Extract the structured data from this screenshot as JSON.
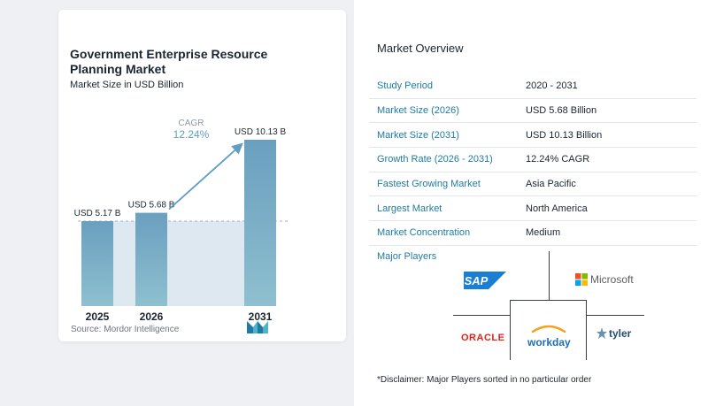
{
  "chart_data": {
    "type": "bar",
    "title": "Government Enterprise Resource Planning Market",
    "subtitle": "Market Size in USD Billion",
    "categories": [
      "2025",
      "2026",
      "2031"
    ],
    "values": [
      5.17,
      5.68,
      10.13
    ],
    "value_labels": [
      "USD 5.17 B",
      "USD 5.68 B",
      "USD 10.13 B"
    ],
    "cagr_label": "CAGR",
    "cagr_value": "12.24%",
    "baseline_guide": "dashed",
    "colors": {
      "bar_top": "#6a9fbf",
      "bar_bottom": "#8ec0cf",
      "band": "#dde8f0",
      "arrow": "#5f9fc4",
      "cagr_text": "#5f9fc4"
    }
  },
  "source": "Source: Mordor Intelligence",
  "brand_logo": "mordor-intelligence-logo",
  "overview": {
    "title": "Market Overview",
    "rows": [
      {
        "label": "Study Period",
        "value": "2020 - 2031"
      },
      {
        "label": "Market Size (2026)",
        "value": "USD 5.68 Billion"
      },
      {
        "label": "Market Size (2031)",
        "value": "USD 10.13 Billion"
      },
      {
        "label": "Growth Rate (2026 - 2031)",
        "value": "12.24% CAGR"
      },
      {
        "label": "Fastest Growing Market",
        "value": "Asia Pacific"
      },
      {
        "label": "Largest Market",
        "value": "North America"
      },
      {
        "label": "Market Concentration",
        "value": "Medium"
      }
    ]
  },
  "players": {
    "title": "Major Players",
    "logos": [
      {
        "name": "SAP",
        "color": "#0a6ed1"
      },
      {
        "name": "Microsoft",
        "color": "#5e5e5e"
      },
      {
        "name": "ORACLE",
        "color": "#e2231a"
      },
      {
        "name": "workday",
        "color": "#1e6fb6"
      },
      {
        "name": "tyler",
        "color": "#1f4e79"
      }
    ]
  },
  "disclaimer": "*Disclaimer: Major Players sorted in no particular order"
}
